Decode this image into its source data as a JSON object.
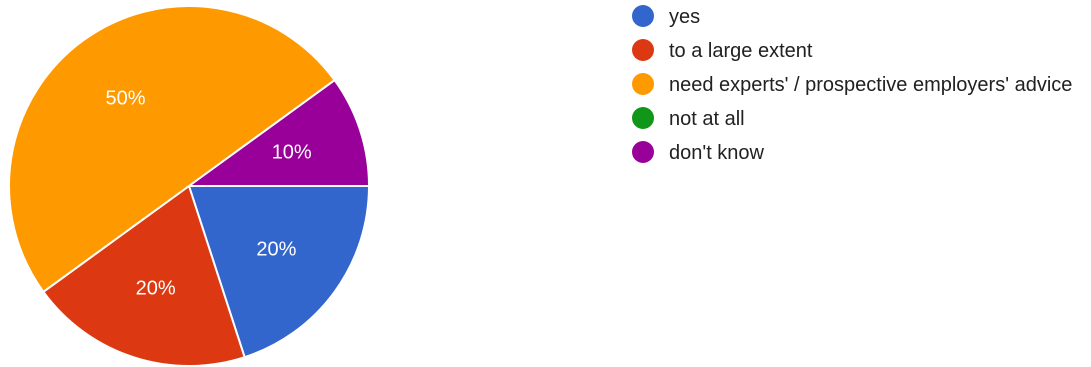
{
  "chart_data": {
    "type": "pie",
    "slices": [
      {
        "label": "yes",
        "value": 20,
        "display": "20%",
        "color": "#3366cc"
      },
      {
        "label": "to a large extent",
        "value": 20,
        "display": "20%",
        "color": "#dc3912"
      },
      {
        "label": "need experts' / prospective employers' advice",
        "value": 50,
        "display": "50%",
        "color": "#ff9900"
      },
      {
        "label": "not at all",
        "value": 0,
        "display": "",
        "color": "#109618"
      },
      {
        "label": "don't know",
        "value": 10,
        "display": "10%",
        "color": "#990099"
      }
    ],
    "legend_position": "right"
  }
}
